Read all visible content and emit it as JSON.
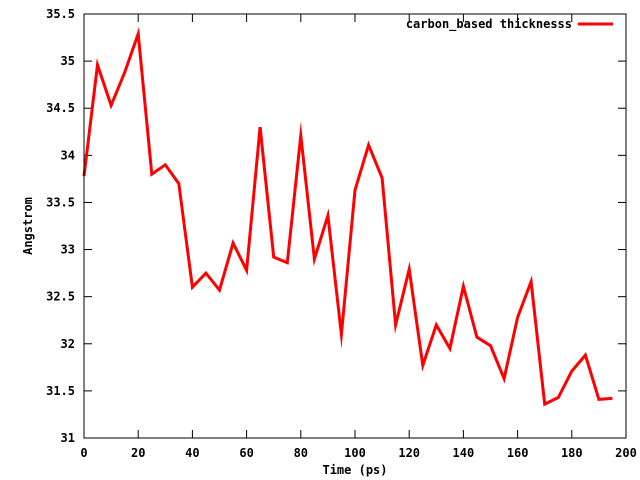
{
  "chart_data": {
    "type": "line",
    "title": "",
    "xlabel": "Time (ps)",
    "ylabel": "Angstrom",
    "xlim": [
      0,
      200
    ],
    "ylim": [
      31,
      35.5
    ],
    "xticks": [
      0,
      20,
      40,
      60,
      80,
      100,
      120,
      140,
      160,
      180,
      200
    ],
    "yticks": [
      31,
      31.5,
      32,
      32.5,
      33,
      33.5,
      34,
      34.5,
      35,
      35.5
    ],
    "xtick_labels": [
      "0",
      "20",
      "40",
      "60",
      "80",
      "100",
      "120",
      "140",
      "160",
      "180",
      "200"
    ],
    "ytick_labels": [
      "31",
      "31.5",
      "32",
      "32.5",
      "33",
      "33.5",
      "34",
      "34.5",
      "35",
      "35.5"
    ],
    "grid": false,
    "legend_position": "top-right",
    "series": [
      {
        "name": "carbon_based thicknesss",
        "color": "#ff0000",
        "x": [
          0,
          5,
          10,
          15,
          20,
          25,
          30,
          35,
          40,
          45,
          50,
          55,
          60,
          65,
          70,
          75,
          80,
          85,
          90,
          95,
          100,
          105,
          110,
          115,
          120,
          125,
          130,
          135,
          140,
          145,
          150,
          155,
          160,
          165,
          170,
          175,
          180,
          185,
          190,
          195
        ],
        "y": [
          33.78,
          34.96,
          34.53,
          34.88,
          35.29,
          33.8,
          33.9,
          33.7,
          32.6,
          32.75,
          32.57,
          33.07,
          32.78,
          34.3,
          32.92,
          32.86,
          34.21,
          32.9,
          33.36,
          32.1,
          33.63,
          34.11,
          33.76,
          32.2,
          32.79,
          31.77,
          32.2,
          31.95,
          32.61,
          32.07,
          31.98,
          31.63,
          32.28,
          32.66,
          31.36,
          31.43,
          31.71,
          31.88,
          31.41,
          31.42
        ]
      }
    ]
  }
}
